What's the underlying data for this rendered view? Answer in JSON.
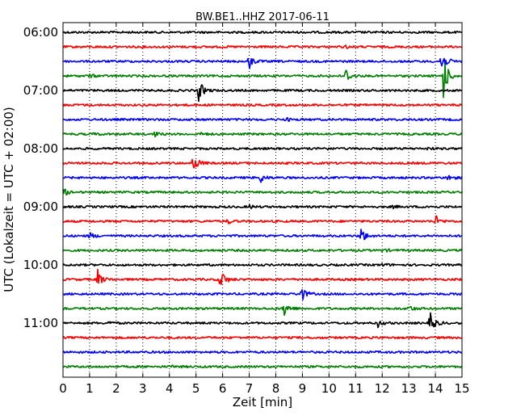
{
  "chart_data": {
    "type": "line",
    "title": "BW.BE1..HHZ 2017-06-11",
    "xlabel": "Zeit  [min]",
    "ylabel": "UTC (Lokalzeit = UTC + 02:00)",
    "xlim": [
      0,
      15
    ],
    "x_ticks": [
      0,
      1,
      2,
      3,
      4,
      5,
      6,
      7,
      8,
      9,
      10,
      11,
      12,
      13,
      14,
      15
    ],
    "y_tick_labels": [
      "06:00",
      "07:00",
      "08:00",
      "09:00",
      "10:00",
      "11:00"
    ],
    "y_tick_rows": [
      0,
      4,
      8,
      12,
      16,
      20
    ],
    "grid": "vertical dotted",
    "row_interval_min": 15,
    "trace_colors": [
      "#000000",
      "#ff0000",
      "#0000ff",
      "#008000"
    ],
    "rows": [
      {
        "start": "06:00",
        "events": []
      },
      {
        "start": "06:15",
        "events": [
          {
            "t": 10.6,
            "amp": 0.12
          }
        ]
      },
      {
        "start": "06:30",
        "events": [
          {
            "t": 7.0,
            "amp": 0.6
          },
          {
            "t": 14.2,
            "amp": 1.3
          }
        ]
      },
      {
        "start": "06:45",
        "events": [
          {
            "t": 1.0,
            "amp": 0.15
          },
          {
            "t": 10.6,
            "amp": 0.8
          },
          {
            "t": 14.3,
            "amp": 1.9
          }
        ]
      },
      {
        "start": "07:00",
        "events": [
          {
            "t": 5.1,
            "amp": 1.0
          }
        ]
      },
      {
        "start": "07:15",
        "events": []
      },
      {
        "start": "07:30",
        "events": [
          {
            "t": 8.4,
            "amp": 0.12
          }
        ]
      },
      {
        "start": "07:45",
        "events": [
          {
            "t": 1.2,
            "amp": 0.1
          },
          {
            "t": 3.4,
            "amp": 0.25
          },
          {
            "t": 5.2,
            "amp": 0.2
          }
        ]
      },
      {
        "start": "08:00",
        "events": [
          {
            "t": 9.8,
            "amp": 0.12
          },
          {
            "t": 13.7,
            "amp": 0.1
          }
        ]
      },
      {
        "start": "08:15",
        "events": [
          {
            "t": 4.9,
            "amp": 0.9
          }
        ]
      },
      {
        "start": "08:30",
        "events": [
          {
            "t": 7.4,
            "amp": 0.45
          },
          {
            "t": 14.5,
            "amp": 0.3
          }
        ]
      },
      {
        "start": "08:45",
        "events": [
          {
            "t": 0.0,
            "amp": 0.4
          }
        ]
      },
      {
        "start": "09:00",
        "events": [
          {
            "t": 7.0,
            "amp": 0.15
          },
          {
            "t": 12.4,
            "amp": 0.12
          },
          {
            "t": 13.6,
            "amp": 0.12
          }
        ]
      },
      {
        "start": "09:15",
        "events": [
          {
            "t": 6.2,
            "amp": 0.2
          },
          {
            "t": 14.0,
            "amp": 0.45
          }
        ]
      },
      {
        "start": "09:30",
        "events": [
          {
            "t": 1.0,
            "amp": 0.3
          },
          {
            "t": 11.2,
            "amp": 0.75
          }
        ]
      },
      {
        "start": "09:45",
        "events": [
          {
            "t": 12.0,
            "amp": 0.2
          }
        ]
      },
      {
        "start": "10:00",
        "events": [
          {
            "t": 12.0,
            "amp": 0.15
          }
        ]
      },
      {
        "start": "10:15",
        "events": [
          {
            "t": 1.3,
            "amp": 0.75
          },
          {
            "t": 5.9,
            "amp": 1.15
          }
        ]
      },
      {
        "start": "10:30",
        "events": [
          {
            "t": 8.9,
            "amp": 1.0
          }
        ]
      },
      {
        "start": "10:45",
        "events": [
          {
            "t": 8.3,
            "amp": 0.8
          },
          {
            "t": 13.0,
            "amp": 0.3
          }
        ]
      },
      {
        "start": "11:00",
        "events": [
          {
            "t": 1.7,
            "amp": 0.12
          },
          {
            "t": 11.8,
            "amp": 0.4
          },
          {
            "t": 13.8,
            "amp": 1.0
          }
        ]
      },
      {
        "start": "11:15",
        "events": []
      },
      {
        "start": "11:30",
        "events": []
      },
      {
        "start": "11:45",
        "events": [
          {
            "t": 4.1,
            "amp": 0.1
          }
        ]
      }
    ]
  }
}
